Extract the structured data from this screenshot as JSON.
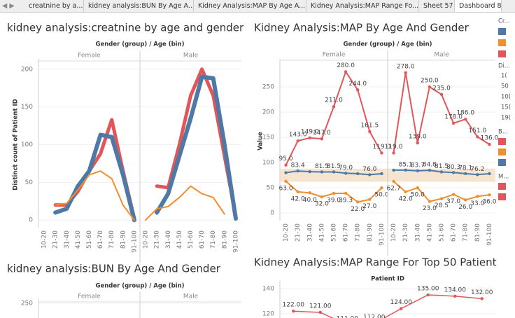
{
  "tabs": [
    "creatnine by a...",
    "kidney analysis:BUN By Age A...",
    "Kidney Analysis:MAP By Age A...",
    "Kidney Analysis:MAP Range Fo...",
    "Sheet 57",
    "Dashboard 8"
  ],
  "legend": [
    {
      "title": "Cr...",
      "colors": [
        "#4e79a7",
        "#f28e2b",
        "#e15759"
      ]
    },
    {
      "title": "Di...",
      "labels": [
        "1(",
        "50",
        "10(",
        "15(",
        "19("
      ]
    },
    {
      "title": "B...",
      "colors": [
        "#e15759",
        "#f28e2b",
        "#4e79a7"
      ]
    },
    {
      "title": "M...",
      "colors": [
        "#e15759",
        "#e15759"
      ]
    }
  ],
  "chart_data": [
    {
      "type": "line",
      "title": "kidney analysis:creatnine by age and gender",
      "header": "Gender (group) / Age (bin)",
      "ylabel": "Distinct count of Patient ID",
      "categories": [
        "10-20",
        "21-30",
        "31-40",
        "41-50",
        "51-60",
        "61-70",
        "71-80",
        "81-90",
        "91-100"
      ],
      "ylim": [
        -10,
        210
      ],
      "yticks": [
        0,
        50,
        100,
        150,
        200
      ],
      "panels": [
        {
          "label": "Female",
          "series": [
            {
              "color": "#e15759",
              "values": [
                null,
                20,
                20,
                38,
                65,
                88,
                133,
                65,
                2
              ]
            },
            {
              "color": "#4e79a7",
              "values": [
                null,
                10,
                15,
                45,
                65,
                113,
                110,
                60,
                0
              ]
            },
            {
              "color": "#f28e2b",
              "values": [
                null,
                20,
                22,
                40,
                60,
                65,
                55,
                20,
                0
              ]
            }
          ]
        },
        {
          "label": "Male",
          "series": [
            {
              "color": "#e15759",
              "values": [
                null,
                45,
                43,
                100,
                165,
                200,
                165,
                85,
                5
              ]
            },
            {
              "color": "#4e79a7",
              "values": [
                null,
                10,
                35,
                85,
                135,
                190,
                188,
                100,
                2
              ]
            },
            {
              "color": "#f28e2b",
              "values": [
                0,
                15,
                18,
                30,
                45,
                35,
                30,
                8,
                null
              ]
            }
          ]
        }
      ]
    },
    {
      "type": "line",
      "title": "Kidney Analysis:MAP By Age And Gender",
      "header": "Gender (group) / Age (bin)",
      "ylabel": "Value",
      "categories": [
        "10-20",
        "21-30",
        "31-40",
        "41-50",
        "51-60",
        "61-70",
        "71-80",
        "81-90",
        "91-100"
      ],
      "ylim": [
        -15,
        300
      ],
      "yticks": [
        0,
        50,
        100,
        150,
        200,
        250
      ],
      "reference_band": [
        62,
        88
      ],
      "panels": [
        {
          "label": "Female",
          "series": [
            {
              "color": "#e15759",
              "values": [
                95,
                143,
                149,
                147,
                211,
                280,
                244,
                161.5,
                119
              ],
              "value_labels": [
                "95.0",
                "143.0",
                "149.0",
                "147.0",
                "211.0",
                "280.0",
                "244.0",
                "161.5",
                "119.0"
              ]
            },
            {
              "color": "#4e79a7",
              "values": [
                80,
                83.4,
                82,
                81.5,
                81.5,
                79,
                78,
                76,
                78
              ],
              "value_labels": [
                null,
                "83.4",
                null,
                "81.5",
                "81.5",
                "79.0",
                null,
                "76.0",
                null
              ]
            },
            {
              "color": "#f28e2b",
              "values": [
                63,
                42,
                40,
                32,
                39,
                39.3,
                22,
                27,
                50
              ],
              "value_labels": [
                "63.0",
                "42.0",
                "40.0",
                "32.0",
                "39.0",
                "39.3",
                "22.0",
                "27.0",
                "50.0"
              ]
            }
          ]
        },
        {
          "label": "Male",
          "series": [
            {
              "color": "#e15759",
              "values": [
                119,
                278,
                139,
                250,
                235,
                178,
                186,
                151,
                136
              ],
              "value_labels": [
                "119.0",
                "278.0",
                "139.0",
                "250.0",
                "235.0",
                "178.0",
                "186.0",
                "151.0",
                "136.0"
              ]
            },
            {
              "color": "#4e79a7",
              "values": [
                85,
                85.1,
                83.7,
                84.8,
                81.5,
                80.3,
                78.1,
                76.2,
                78
              ],
              "value_labels": [
                null,
                "85.1",
                "83.7",
                "84.8",
                "81.5",
                "80.3",
                "78.1",
                "76.2",
                null
              ]
            },
            {
              "color": "#f28e2b",
              "values": [
                62.7,
                42,
                50,
                23,
                28.5,
                37,
                26,
                33,
                36
              ],
              "value_labels": [
                "62.7",
                "42.0",
                "50.0",
                "23.0",
                "28.5",
                "37.0",
                "26.0",
                "33.0",
                "36.0"
              ]
            }
          ]
        }
      ]
    },
    {
      "type": "line",
      "title": "kidney analysis:BUN By Age And Gender",
      "header": "Gender (group) / Age (bin)",
      "ylim": [
        0,
        270
      ],
      "yticks": [
        250
      ],
      "panels": [
        {
          "label": "Female"
        },
        {
          "label": "Male"
        }
      ]
    },
    {
      "type": "line",
      "title": "Kidney Analysis:MAP Range For Top 50 Patient",
      "header": "Patient ID",
      "categories": [
        null,
        null,
        null,
        null,
        null,
        null,
        null,
        null
      ],
      "ylim": [
        116.5,
        144
      ],
      "yticks": [
        120,
        140
      ],
      "series": [
        {
          "color": "#e15759",
          "values": [
            122,
            121,
            111,
            112,
            124,
            135,
            134,
            132
          ],
          "value_labels": [
            "122.00",
            "121.00",
            "111.00",
            "112.00",
            "124.00",
            "135.00",
            "134.00",
            "132.00"
          ]
        }
      ]
    }
  ]
}
